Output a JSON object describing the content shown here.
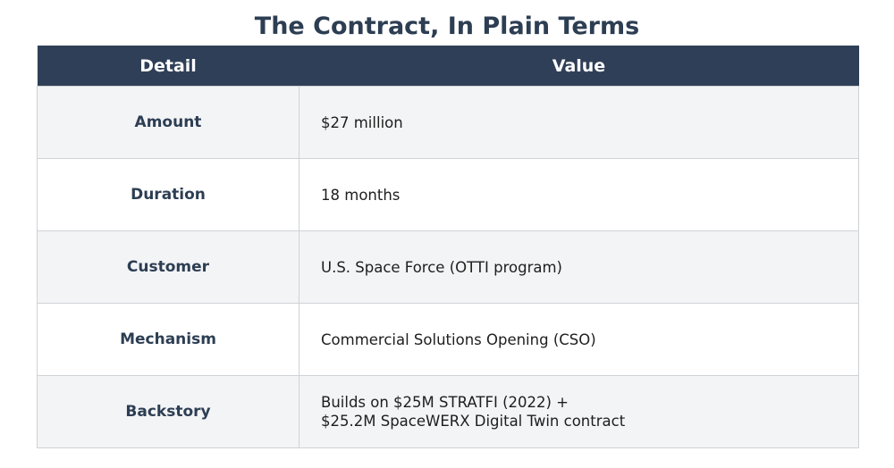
{
  "title": "The Contract, In Plain Terms",
  "table": {
    "headers": {
      "detail": "Detail",
      "value": "Value"
    },
    "rows": [
      {
        "detail": "Amount",
        "value": "$27 million"
      },
      {
        "detail": "Duration",
        "value": "18 months"
      },
      {
        "detail": "Customer",
        "value": "U.S. Space Force (OTTI program)"
      },
      {
        "detail": "Mechanism",
        "value": "Commercial Solutions Opening (CSO)"
      },
      {
        "detail": "Backstory",
        "value": "Builds on $25M STRATFI (2022) +\n$25.2M SpaceWERX Digital Twin contract"
      }
    ]
  },
  "colors": {
    "title": "#2d3e53",
    "header_bg": "#2f3f57",
    "header_text": "#ffffff",
    "row_alt_bg": "#f3f4f6",
    "row_bg": "#ffffff",
    "border": "#cfd2d6"
  }
}
